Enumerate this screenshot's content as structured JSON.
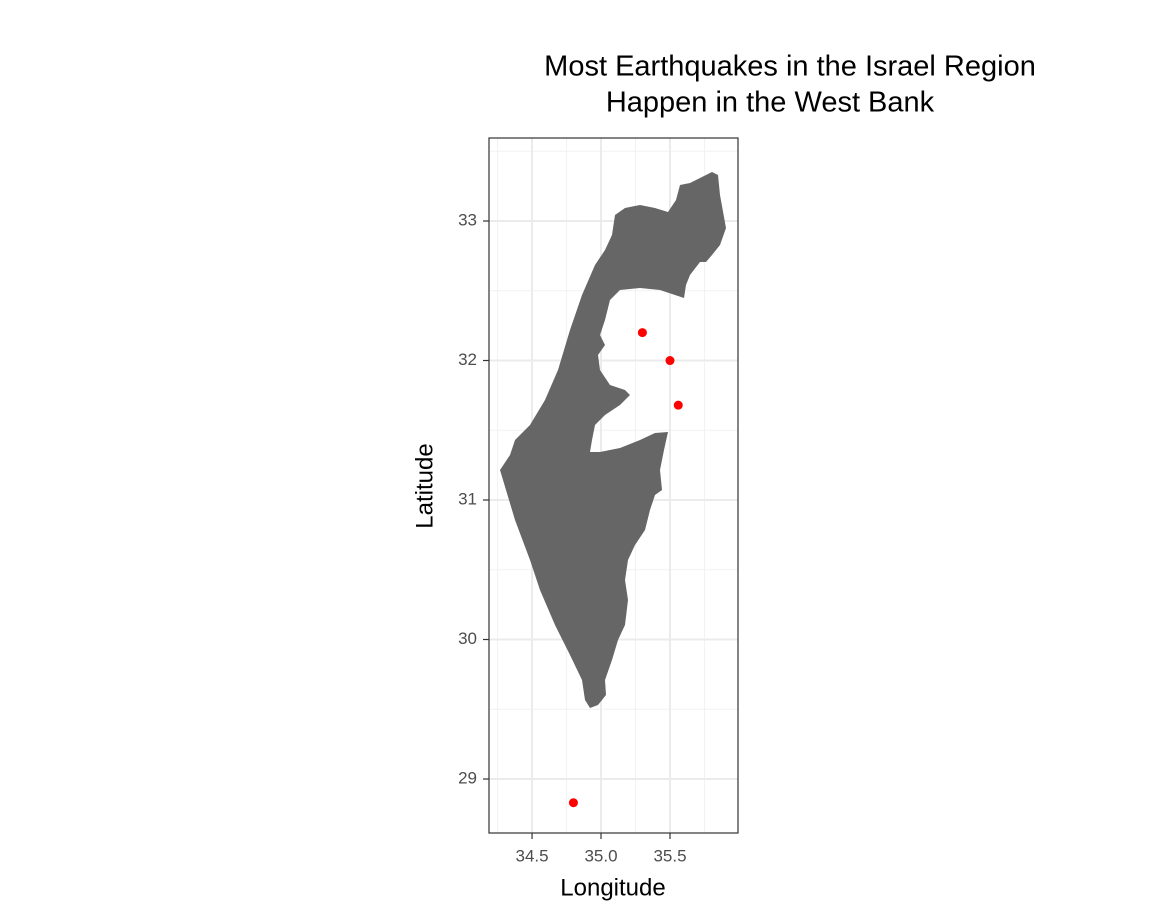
{
  "chart_data": {
    "type": "scatter",
    "title": [
      "Most Earthquakes in the Israel Region",
      "Happen in the West Bank"
    ],
    "x_label": "Longitude",
    "y_label": "Latitude",
    "x": [
      35.3,
      35.5,
      35.56,
      34.8
    ],
    "values": [
      32.2,
      32.0,
      31.68,
      28.83
    ],
    "color": "#ff0000",
    "land_color": "#666666",
    "xlim": [
      34.188,
      35.993
    ],
    "ylim": [
      28.613,
      33.595
    ],
    "xticks": [
      34.5,
      {
        "value": 35,
        "label": "35.0"
      },
      35.5
    ],
    "yticks": [
      29,
      30,
      31,
      32,
      33
    ],
    "x_minor_ticks": [
      34.25,
      34.75,
      35.25,
      35.75
    ],
    "y_minor_ticks": [
      29.5,
      30.5,
      31.5,
      32.5,
      33.5
    ],
    "grid": true
  }
}
